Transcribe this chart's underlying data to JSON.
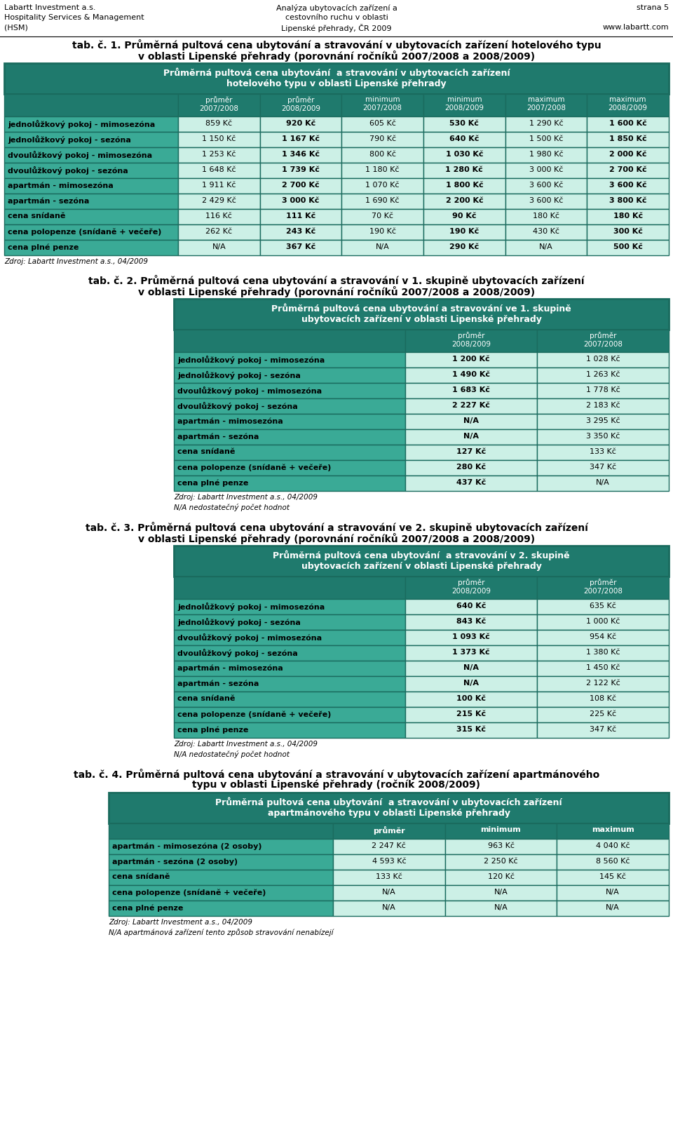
{
  "header_left": [
    "Labartt Investment a.s.",
    "Hospitality Services & Management",
    "(HSM)"
  ],
  "header_center": [
    "Analýza ubytovacích zařízení a",
    "cestovního ruchu v oblasti",
    "Lipenské přehrady, ČR 2009"
  ],
  "header_right": [
    "strana 5",
    "",
    "www.labartt.com"
  ],
  "tab1_title_line1": "tab. č. 1. Průměrná pultová cena ubytování a stravování v ubytovacích zařízení hotelového typu",
  "tab1_title_line2": "v oblasti Lipenské přehrady (porovnání ročníků 2007/2008 a 2008/2009)",
  "tab1_header1": "Průměrná pultová cena ubytování  a stravování v ubytovacích zařízení\nhotelového typu v oblasti Lipenské přehrady",
  "tab1_col_headers": [
    "průměr\n2007/2008",
    "průměr\n2008/2009",
    "minimum\n2007/2008",
    "minimum\n2008/2009",
    "maximum\n2007/2008",
    "maximum\n2008/2009"
  ],
  "tab1_rows": [
    [
      "jednolůžkový pokoj - mimosezóna",
      "859 Kč",
      "920 Kč",
      "605 Kč",
      "530 Kč",
      "1 290 Kč",
      "1 600 Kč"
    ],
    [
      "jednolůžkový pokoj - sezóna",
      "1 150 Kč",
      "1 167 Kč",
      "790 Kč",
      "640 Kč",
      "1 500 Kč",
      "1 850 Kč"
    ],
    [
      "dvoulůžkový pokoj - mimosezóna",
      "1 253 Kč",
      "1 346 Kč",
      "800 Kč",
      "1 030 Kč",
      "1 980 Kč",
      "2 000 Kč"
    ],
    [
      "dvoulůžkový pokoj - sezóna",
      "1 648 Kč",
      "1 739 Kč",
      "1 180 Kč",
      "1 280 Kč",
      "3 000 Kč",
      "2 700 Kč"
    ],
    [
      "apartmán - mimosezóna",
      "1 911 Kč",
      "2 700 Kč",
      "1 070 Kč",
      "1 800 Kč",
      "3 600 Kč",
      "3 600 Kč"
    ],
    [
      "apartmán - sezóna",
      "2 429 Kč",
      "3 000 Kč",
      "1 690 Kč",
      "2 200 Kč",
      "3 600 Kč",
      "3 800 Kč"
    ],
    [
      "cena snídaně",
      "116 Kč",
      "111 Kč",
      "70 Kč",
      "90 Kč",
      "180 Kč",
      "180 Kč"
    ],
    [
      "cena polopenze (snídaně + večeře)",
      "262 Kč",
      "243 Kč",
      "190 Kč",
      "190 Kč",
      "430 Kč",
      "300 Kč"
    ],
    [
      "cena plné penze",
      "N/A",
      "367 Kč",
      "N/A",
      "290 Kč",
      "N/A",
      "500 Kč"
    ]
  ],
  "tab1_source": "Zdroj: Labartt Investment a.s., 04/2009",
  "tab2_title_line1": "tab. č. 2. Průměrná pultová cena ubytování a stravování v 1. skupině ubytovacích zařízení",
  "tab2_title_line2": "v oblasti Lipenské přehrady (porovnání ročníků 2007/2008 a 2008/2009)",
  "tab2_header1": "Průměrná pultová cena ubytování a stravování ve 1. skupině\nubytovacích zařízení v oblasti Lipenské přehrady",
  "tab2_col_headers": [
    "průměr\n2008/2009",
    "průměr\n2007/2008"
  ],
  "tab2_rows": [
    [
      "jednolůžkový pokoj - mimosezóna",
      "1 200 Kč",
      "1 028 Kč"
    ],
    [
      "jednolůžkový pokoj - sezóna",
      "1 490 Kč",
      "1 263 Kč"
    ],
    [
      "dvoulůžkový pokoj - mimosezóna",
      "1 683 Kč",
      "1 778 Kč"
    ],
    [
      "dvoulůžkový pokoj - sezóna",
      "2 227 Kč",
      "2 183 Kč"
    ],
    [
      "apartmán - mimosezóna",
      "N/A",
      "3 295 Kč"
    ],
    [
      "apartmán - sezóna",
      "N/A",
      "3 350 Kč"
    ],
    [
      "cena snídaně",
      "127 Kč",
      "133 Kč"
    ],
    [
      "cena polopenze (snídaně + večeře)",
      "280 Kč",
      "347 Kč"
    ],
    [
      "cena plné penze",
      "437 Kč",
      "N/A"
    ]
  ],
  "tab2_source": "Zdroj: Labartt Investment a.s., 04/2009",
  "tab2_note": "N/A nedostatečný počet hodnot",
  "tab3_title_line1": "tab. č. 3. Průměrná pultová cena ubytování a stravování ve 2. skupině ubytovacích zařízení",
  "tab3_title_line2": "v oblasti Lipenské přehrady (porovnání ročníků 2007/2008 a 2008/2009)",
  "tab3_header1": "Průměrná pultová cena ubytování  a stravování v 2. skupině\nubytovacích zařízení v oblasti Lipenské přehrady",
  "tab3_col_headers": [
    "průměr\n2008/2009",
    "průměr\n2007/2008"
  ],
  "tab3_rows": [
    [
      "jednolůžkový pokoj - mimosezóna",
      "640 Kč",
      "635 Kč"
    ],
    [
      "jednolůžkový pokoj - sezóna",
      "843 Kč",
      "1 000 Kč"
    ],
    [
      "dvoulůžkový pokoj - mimosezóna",
      "1 093 Kč",
      "954 Kč"
    ],
    [
      "dvoulůžkový pokoj - sezóna",
      "1 373 Kč",
      "1 380 Kč"
    ],
    [
      "apartmán - mimosezóna",
      "N/A",
      "1 450 Kč"
    ],
    [
      "apartmán - sezóna",
      "N/A",
      "2 122 Kč"
    ],
    [
      "cena snídaně",
      "100 Kč",
      "108 Kč"
    ],
    [
      "cena polopenze (snídaně + večeře)",
      "215 Kč",
      "225 Kč"
    ],
    [
      "cena plné penze",
      "315 Kč",
      "347 Kč"
    ]
  ],
  "tab3_source": "Zdroj: Labartt Investment a.s., 04/2009",
  "tab3_note": "N/A nedostatečný počet hodnot",
  "tab4_title_line1": "tab. č. 4. Průměrná pultová cena ubytování a stravování v ubytovacích zařízení apartmánového",
  "tab4_title_line2": "typu v oblasti Lipenské přehrady (ročník 2008/2009)",
  "tab4_header1": "Průměrná pultová cena ubytování  a stravování v ubytovacích zařízení\napartmánového typu v oblasti Lipenské přehrady",
  "tab4_col_headers": [
    "průměr",
    "minimum",
    "maximum"
  ],
  "tab4_rows": [
    [
      "apartmán - mimosezóna (2 osoby)",
      "2 247 Kč",
      "963 Kč",
      "4 040 Kč"
    ],
    [
      "apartmán - sezóna (2 osoby)",
      "4 593 Kč",
      "2 250 Kč",
      "8 560 Kč"
    ],
    [
      "cena snídaně",
      "133 Kč",
      "120 Kč",
      "145 Kč"
    ],
    [
      "cena polopenze (snídaně + večeře)",
      "N/A",
      "N/A",
      "N/A"
    ],
    [
      "cena plné penze",
      "N/A",
      "N/A",
      "N/A"
    ]
  ],
  "tab4_source": "Zdroj: Labartt Investment a.s., 04/2009",
  "tab4_note": "N/A apartmánová zařízení tento způsob stravování nenabízejí",
  "color_teal_dark": "#1f7a6d",
  "color_teal_row": "#3aaa96",
  "color_green_light": "#ccf0e6",
  "color_border": "#1a6b5e"
}
